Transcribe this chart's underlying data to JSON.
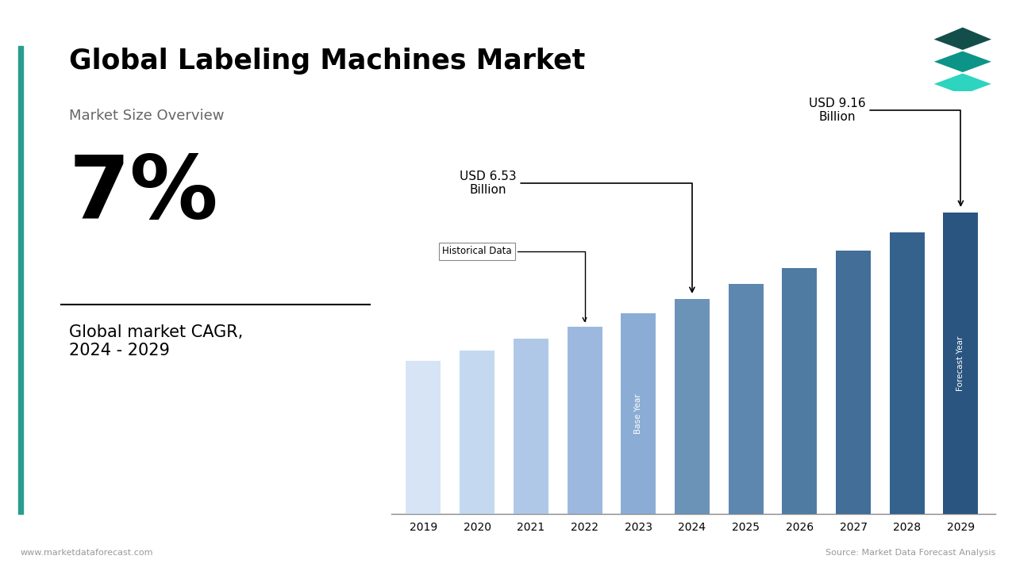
{
  "title": "Global Labeling Machines Market",
  "subtitle": "Market Size Overview",
  "cagr": "7%",
  "cagr_label": "Global market CAGR,\n2024 - 2029",
  "years": [
    2019,
    2020,
    2021,
    2022,
    2023,
    2024,
    2025,
    2026,
    2027,
    2028,
    2029
  ],
  "values": [
    4.65,
    4.97,
    5.32,
    5.7,
    6.1,
    6.53,
    6.99,
    7.48,
    8.0,
    8.56,
    9.16
  ],
  "bar_colors": [
    "#d6e4f5",
    "#c4d8f0",
    "#b0c8e8",
    "#9db8de",
    "#8badd5",
    "#6b93b8",
    "#5d87ae",
    "#4f7ba3",
    "#426e98",
    "#35618d",
    "#2a5580"
  ],
  "annotation_6_53": "USD 6.53\nBillion",
  "annotation_9_16": "USD 9.16\nBillion",
  "historical_label": "Historical Data",
  "base_year_label": "Base Year",
  "forecast_year_label": "Forecast Year",
  "footer_left": "www.marketdataforecast.com",
  "footer_right": "Source: Market Data Forecast Analysis",
  "background_color": "#ffffff",
  "teal_accent": "#2a9d8f",
  "logo_colors": [
    "#2dd4bf",
    "#0d9488",
    "#134e4a"
  ]
}
